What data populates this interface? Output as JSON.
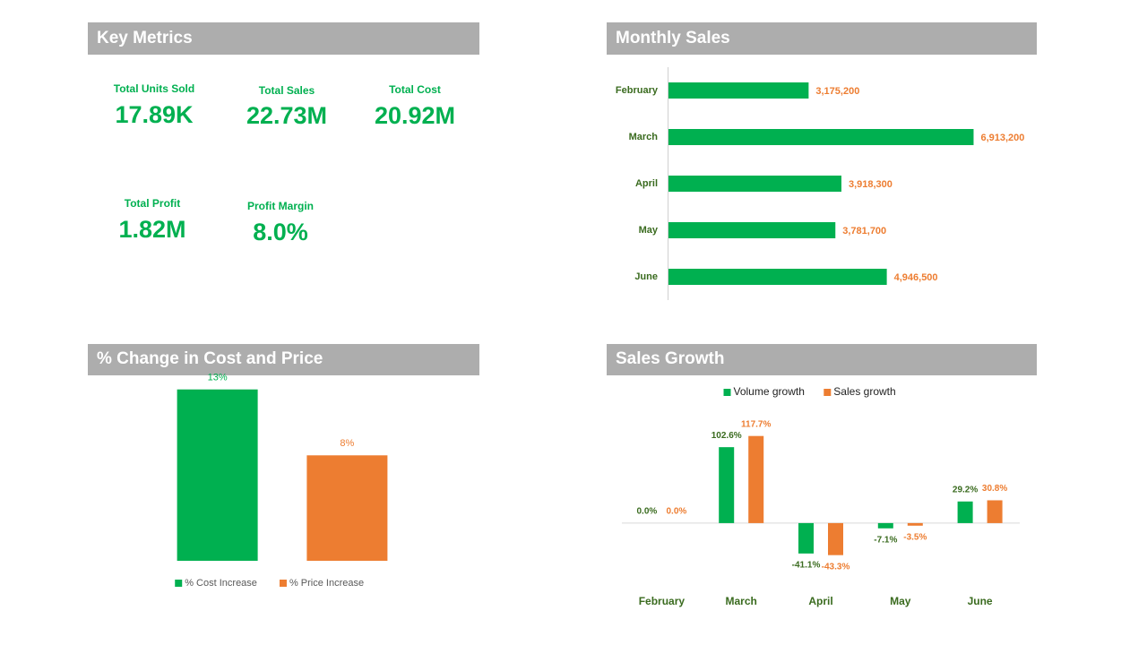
{
  "metrics": {
    "title": "Key Metrics",
    "items": [
      {
        "label": "Total Units Sold",
        "value": "17.89K"
      },
      {
        "label": "Total Sales",
        "value": "22.73M"
      },
      {
        "label": "Total Cost",
        "value": "20.92M"
      },
      {
        "label": "Total Profit",
        "value": "1.82M"
      },
      {
        "label": "Profit Margin",
        "value": "8.0%"
      }
    ]
  },
  "chart_data": [
    {
      "type": "hbar",
      "title": "Monthly Sales",
      "categories": [
        "February",
        "March",
        "April",
        "May",
        "June"
      ],
      "values": [
        3175200,
        6913200,
        3918300,
        3781700,
        4946500
      ],
      "value_labels": [
        "3,175,200",
        "6,913,200",
        "3,918,300",
        "3,781,700",
        "4,946,500"
      ],
      "color": "#00b050",
      "label_color": "#ed7d31",
      "xlim": [
        0,
        8000000
      ]
    },
    {
      "type": "bar",
      "title": "% Change in Cost and Price",
      "categories": [
        null
      ],
      "series": [
        {
          "name": "% Cost Increase",
          "color": "#00b050",
          "values": [
            13
          ],
          "value_labels": [
            "13%"
          ]
        },
        {
          "name": "% Price Increase",
          "color": "#ed7d31",
          "values": [
            8
          ],
          "value_labels": [
            "8%"
          ]
        }
      ],
      "ylim": [
        0,
        14
      ],
      "legend": "bottom"
    },
    {
      "type": "bar",
      "title": "Sales Growth",
      "categories": [
        "February",
        "March",
        "April",
        "May",
        "June"
      ],
      "series": [
        {
          "name": "Volume growth",
          "color": "#00b050",
          "values": [
            0,
            102.6,
            -41.1,
            -7.1,
            29.2
          ],
          "value_labels": [
            "0.0%",
            "102.6%",
            "-41.1%",
            "-7.1%",
            "29.2%"
          ]
        },
        {
          "name": "Sales growth",
          "color": "#ed7d31",
          "values": [
            0,
            117.7,
            -43.3,
            -3.5,
            30.8
          ],
          "value_labels": [
            "0.0%",
            "117.7%",
            "-43.3%",
            "-3.5%",
            "30.8%"
          ]
        }
      ],
      "ylim": [
        -80,
        150
      ],
      "legend": "top"
    }
  ]
}
